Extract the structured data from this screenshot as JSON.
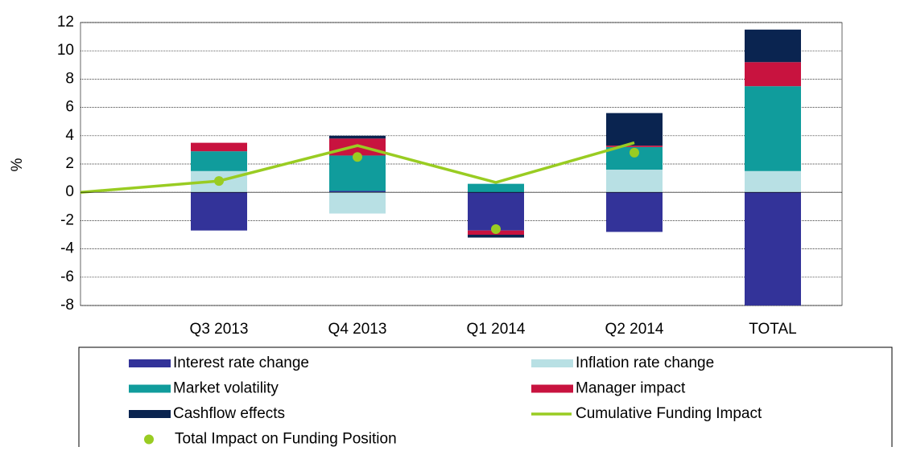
{
  "chart_data": {
    "type": "bar",
    "stacked": true,
    "y_label": "%",
    "categories": [
      null,
      "Q3 2013",
      "Q4 2013",
      "Q1 2014",
      "Q2 2014",
      "TOTAL"
    ],
    "series": [
      {
        "name": "Interest rate change",
        "color": "#333399",
        "values": [
          null,
          -2.7,
          0.1,
          -2.7,
          -2.8,
          -8.1
        ]
      },
      {
        "name": "Inflation rate change",
        "color": "#b8e0e4",
        "values": [
          null,
          1.5,
          -1.5,
          0,
          1.6,
          1.5
        ]
      },
      {
        "name": "Market volatility",
        "color": "#109c9c",
        "values": [
          null,
          1.4,
          2.5,
          0.6,
          1.6,
          6.0
        ]
      },
      {
        "name": "Manager impact",
        "color": "#c8133f",
        "values": [
          null,
          0.6,
          1.2,
          -0.3,
          0.1,
          1.7
        ]
      },
      {
        "name": "Cashflow effects",
        "color": "#0a2450",
        "values": [
          null,
          0,
          0.2,
          -0.2,
          2.3,
          2.3
        ]
      },
      {
        "name": "Cumulative Funding Impact",
        "type": "line",
        "color": "#99cc22",
        "values": [
          0,
          0.8,
          3.3,
          0.7,
          3.5,
          null
        ]
      },
      {
        "name": "Total Impact on Funding Position",
        "type": "scatter",
        "color": "#99cc22",
        "values": [
          null,
          0.8,
          2.5,
          -2.6,
          2.8,
          null
        ]
      }
    ],
    "ylim": [
      -8,
      12
    ],
    "yticks": [
      -8,
      -6,
      -4,
      -2,
      0,
      2,
      4,
      6,
      8,
      10,
      12
    ],
    "grid": true,
    "legend": "bottom"
  }
}
